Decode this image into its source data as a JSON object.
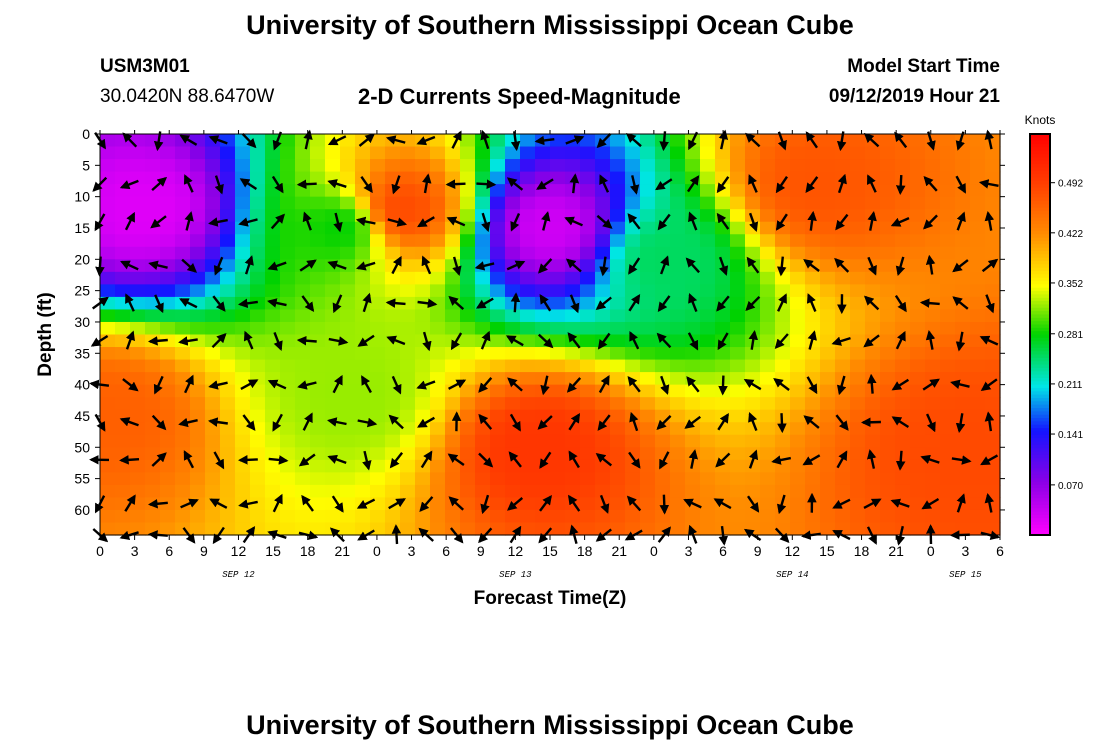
{
  "header": {
    "title": "University of Southern Mississippi Ocean Cube",
    "station_id": "USM3M01",
    "station_coords": "30.0420N 88.6470W",
    "plot_title": "2-D Currents Speed-Magnitude",
    "model_label": "Model Start Time",
    "model_time": "09/12/2019 Hour 21"
  },
  "footer": {
    "title": "University of Southern Mississippi Ocean Cube"
  },
  "chart_data": {
    "type": "heatmap",
    "title": "2-D Currents Speed-Magnitude",
    "xlabel": "Forecast Time(Z)",
    "ylabel": "Depth (ft)",
    "x_hours_range": [
      0,
      78
    ],
    "ylim": [
      0,
      64
    ],
    "x_tick_labels": [
      "0",
      "3",
      "6",
      "9",
      "12",
      "15",
      "18",
      "21",
      "0",
      "3",
      "6",
      "9",
      "12",
      "15",
      "18",
      "21",
      "0",
      "3",
      "6",
      "9",
      "12",
      "15",
      "18",
      "21",
      "0",
      "3",
      "6"
    ],
    "y_ticks": [
      0,
      5,
      10,
      15,
      20,
      25,
      30,
      35,
      40,
      45,
      50,
      55,
      60
    ],
    "date_labels": [
      {
        "label": "SEP 12",
        "hour": 12
      },
      {
        "label": "SEP 13",
        "hour": 36
      },
      {
        "label": "SEP 14",
        "hour": 60
      },
      {
        "label": "SEP 15",
        "hour": 75
      }
    ],
    "colorbar": {
      "unit": "Knots",
      "ticks": [
        "0.070",
        "0.141",
        "0.211",
        "0.281",
        "0.352",
        "0.422",
        "0.492"
      ],
      "range": [
        0,
        0.56
      ]
    },
    "speed_features_knots": [
      {
        "hour": 21,
        "depth": 15,
        "speed": 0.28
      },
      {
        "hour": 26,
        "depth": 12,
        "speed": 0.48
      },
      {
        "hour": 1,
        "depth": 45,
        "speed": 0.46
      },
      {
        "hour": 22,
        "depth": 42,
        "speed": 0.32
      },
      {
        "hour": 38,
        "depth": 50,
        "speed": 0.5
      },
      {
        "hour": 62,
        "depth": 8,
        "speed": 0.47
      },
      {
        "hour": 75,
        "depth": 51,
        "speed": 0.48
      },
      {
        "hour": 4,
        "depth": 12,
        "speed": 0.02
      },
      {
        "hour": 39,
        "depth": 15,
        "speed": 0.03
      },
      {
        "hour": 49,
        "depth": 20,
        "speed": 0.25
      }
    ],
    "vector_hours": [
      0,
      2.6,
      5.1,
      7.7,
      10.3,
      12.9,
      15.4,
      18,
      20.6,
      23.1,
      25.7,
      28.3,
      30.9,
      33.4,
      36,
      38.6,
      41.1,
      43.7,
      46.3,
      48.9,
      51.4,
      54,
      56.6,
      59.1,
      61.7,
      64.3,
      66.9,
      69.4,
      72,
      74.6,
      77.1
    ],
    "vector_depths": [
      1,
      8,
      14,
      21,
      27,
      33,
      40,
      46,
      52,
      59,
      64
    ],
    "colors": {
      "background": "#ffffff",
      "axis": "#000000",
      "arrows": "#000000"
    }
  }
}
